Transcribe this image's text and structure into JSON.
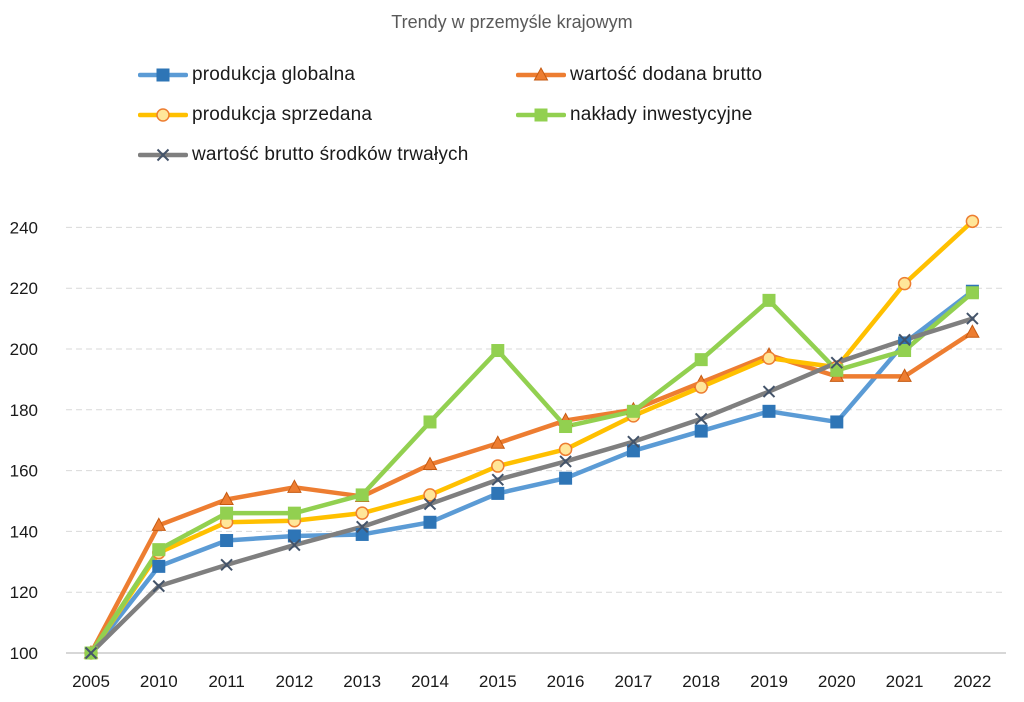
{
  "chart_data": {
    "type": "line",
    "title": "Trendy w przemyśle krajowym",
    "xlabel": "",
    "ylabel": "",
    "categories": [
      "2005",
      "2010",
      "2011",
      "2012",
      "2013",
      "2014",
      "2015",
      "2016",
      "2017",
      "2018",
      "2019",
      "2020",
      "2021",
      "2022"
    ],
    "ylim": [
      100,
      240
    ],
    "yticks": [
      100,
      120,
      140,
      160,
      180,
      200,
      220,
      240
    ],
    "grid": true,
    "legend_position": "top",
    "series": [
      {
        "name": "produkcja globalna",
        "color": "#5B9BD5",
        "marker": "square",
        "marker_fill": "#2E75B6",
        "values": [
          100,
          128.5,
          137,
          138.5,
          139,
          143,
          152.5,
          157.5,
          166.5,
          173,
          179.5,
          176,
          202,
          219
        ]
      },
      {
        "name": "wartość dodana brutto",
        "color": "#ED7D31",
        "marker": "triangle",
        "marker_fill": "#ED7D31",
        "values": [
          100,
          142,
          150.5,
          154.5,
          151.5,
          162,
          169,
          176.5,
          180,
          189,
          198,
          191,
          191,
          205.5
        ]
      },
      {
        "name": "produkcja sprzedana",
        "color": "#FFC000",
        "marker": "circle",
        "marker_fill": "#FFE699",
        "values": [
          100,
          133,
          143,
          143.5,
          146,
          152,
          161.5,
          167,
          178,
          187.5,
          197,
          194,
          221.5,
          242
        ]
      },
      {
        "name": "nakłady inwestycyjne",
        "color": "#92D050",
        "marker": "square",
        "marker_fill": "#92D050",
        "values": [
          100,
          134,
          146,
          146,
          152,
          176,
          199.5,
          174.5,
          179.5,
          196.5,
          216,
          193,
          199.5,
          218.5
        ]
      },
      {
        "name": "wartość brutto środków trwałych",
        "color": "#7F7F7F",
        "marker": "x",
        "marker_fill": "#44546A",
        "values": [
          100,
          122,
          129,
          135.5,
          141.5,
          149,
          157,
          163,
          169.5,
          177,
          186,
          195.5,
          203,
          210
        ]
      }
    ]
  }
}
